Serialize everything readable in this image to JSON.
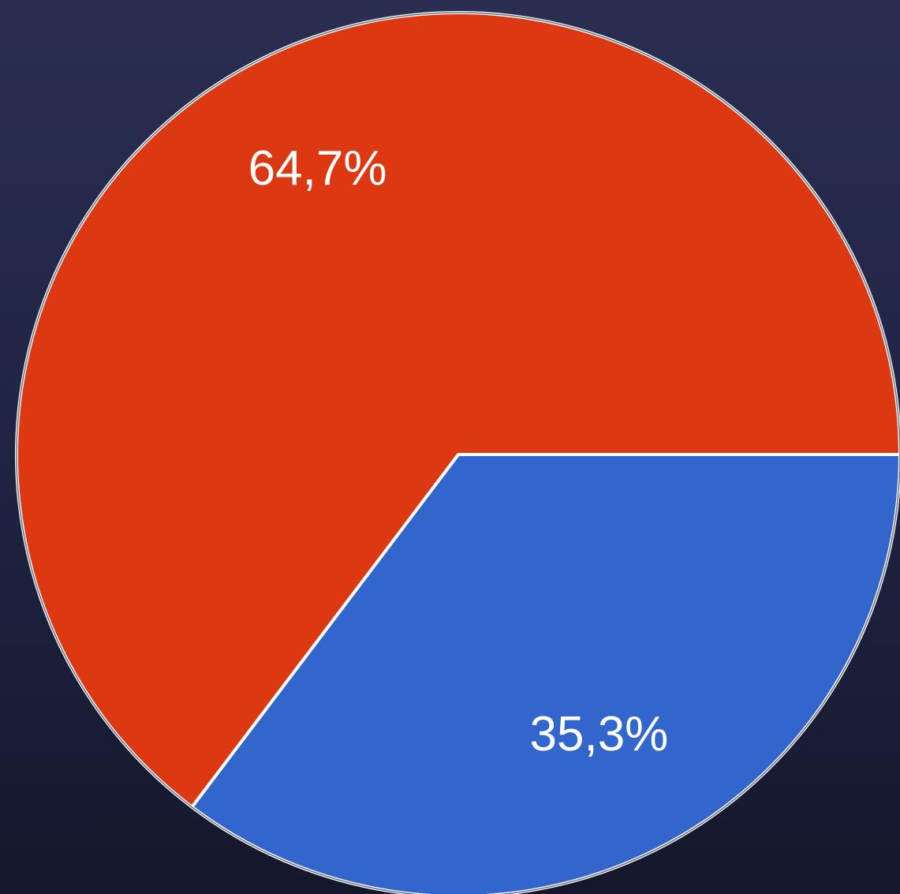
{
  "chart_data": {
    "type": "pie",
    "values": [
      35.3,
      64.7
    ],
    "value_labels": [
      "35,3%",
      "64,7%"
    ],
    "colors": [
      "#3366cc",
      "#dc3912"
    ]
  }
}
